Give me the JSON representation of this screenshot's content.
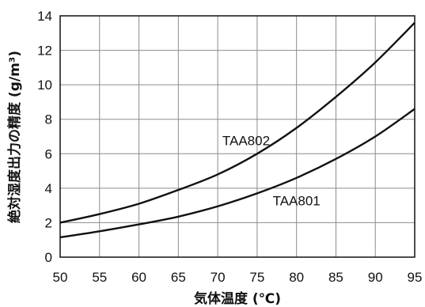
{
  "chart_data": {
    "type": "line",
    "title": "",
    "xlabel": "気体温度 (℃)",
    "ylabel": "絶対湿度出力の精度 (g/m³)",
    "xlim": [
      50,
      95
    ],
    "ylim": [
      0,
      14
    ],
    "x_ticks": [
      50,
      55,
      60,
      65,
      70,
      75,
      80,
      85,
      90,
      95
    ],
    "y_ticks": [
      0,
      2,
      4,
      6,
      8,
      10,
      12,
      14
    ],
    "grid": true,
    "legend": "none",
    "x": [
      50,
      55,
      60,
      65,
      70,
      75,
      80,
      85,
      90,
      95
    ],
    "series": [
      {
        "name": "TAA802",
        "values": [
          2.0,
          2.5,
          3.1,
          3.9,
          4.8,
          6.0,
          7.5,
          9.3,
          11.3,
          13.6
        ]
      },
      {
        "name": "TAA801",
        "values": [
          1.15,
          1.5,
          1.9,
          2.35,
          2.95,
          3.7,
          4.6,
          5.7,
          7.0,
          8.6
        ]
      }
    ]
  }
}
